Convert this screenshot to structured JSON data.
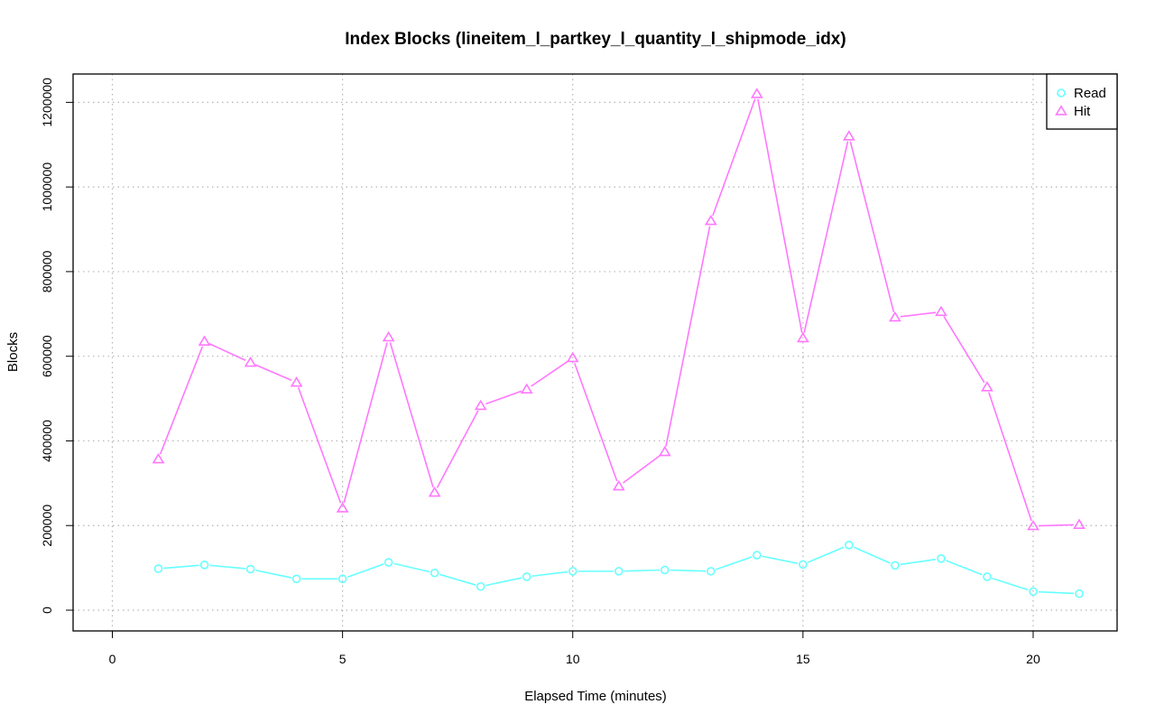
{
  "chart_data": {
    "type": "line",
    "title": "Index Blocks (lineitem_l_partkey_l_quantity_l_shipmode_idx)",
    "xlabel": "Elapsed Time (minutes)",
    "ylabel": "Blocks",
    "xlim": [
      0,
      21
    ],
    "ylim": [
      0,
      1220000
    ],
    "x_ticks": [
      0,
      5,
      10,
      15,
      20
    ],
    "x_tick_labels": [
      "0",
      "5",
      "10",
      "15",
      "20"
    ],
    "y_ticks": [
      0,
      200000,
      400000,
      600000,
      800000,
      1000000,
      1200000
    ],
    "y_tick_labels": [
      "0",
      "200000",
      "400000",
      "600000",
      "800000",
      "1000000",
      "1200000"
    ],
    "grid": true,
    "legend_position": "top-right",
    "x": [
      1,
      2,
      3,
      4,
      5,
      6,
      7,
      8,
      9,
      10,
      11,
      12,
      13,
      14,
      15,
      16,
      17,
      18,
      19,
      20,
      21
    ],
    "series": [
      {
        "name": "Read",
        "color": "#66ffff",
        "marker": "circle",
        "values": [
          98000,
          107000,
          97000,
          74000,
          74000,
          113000,
          88000,
          56000,
          79000,
          92000,
          92000,
          95000,
          92000,
          130000,
          108000,
          154000,
          106000,
          122000,
          79000,
          44000,
          39000
        ]
      },
      {
        "name": "Hit",
        "color": "#ff77ff",
        "marker": "triangle",
        "values": [
          357000,
          635000,
          585000,
          538000,
          241000,
          645000,
          278000,
          483000,
          522000,
          596000,
          293000,
          374000,
          920000,
          1220000,
          643000,
          1120000,
          692000,
          705000,
          527000,
          199000,
          202000
        ]
      }
    ]
  }
}
